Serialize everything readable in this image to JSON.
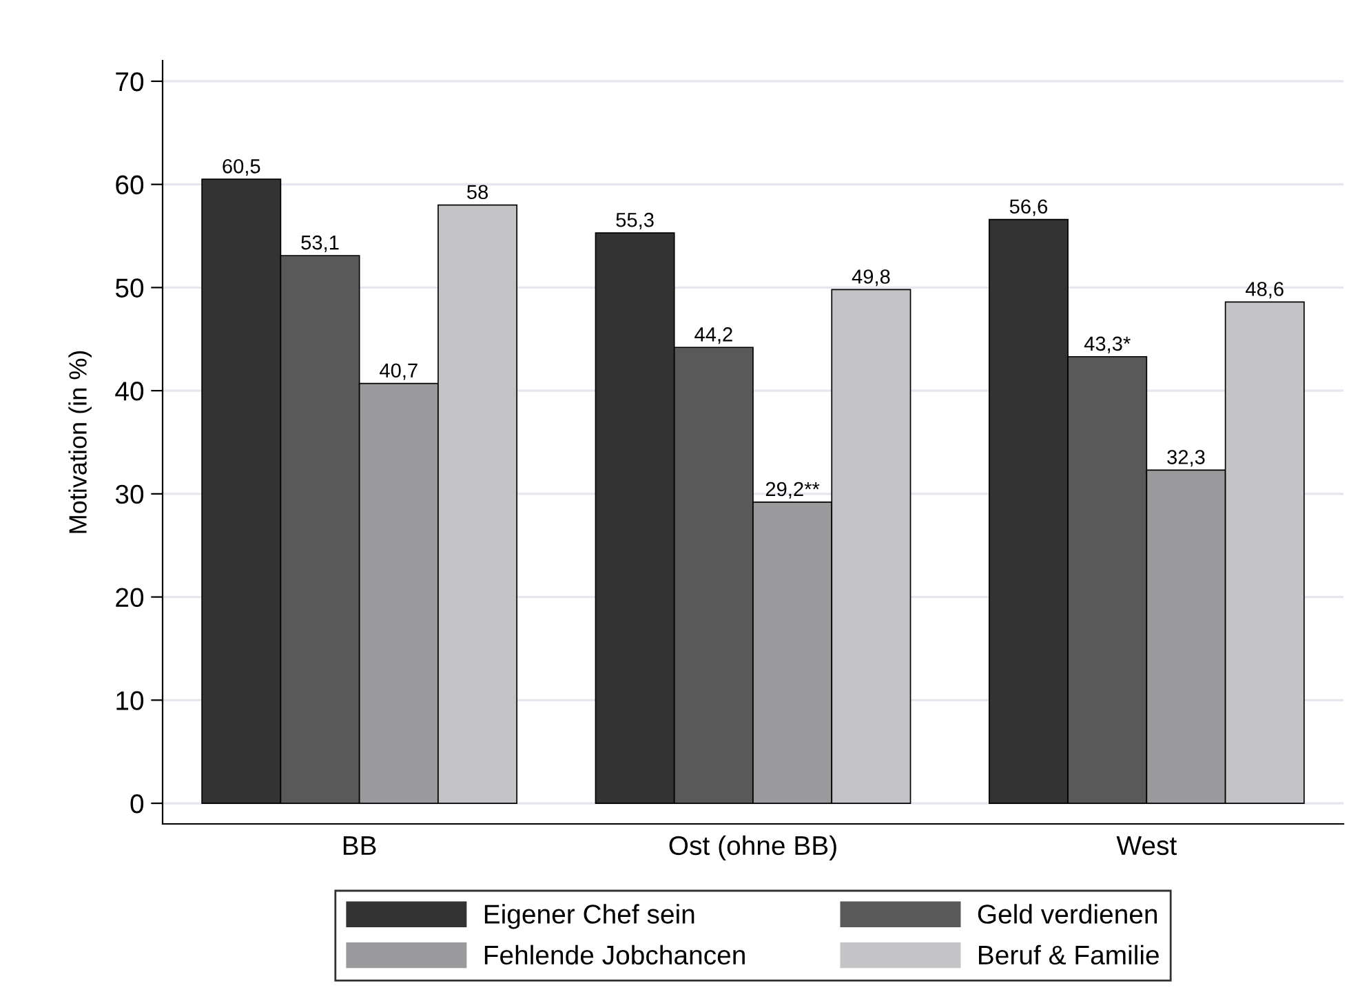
{
  "chart_data": {
    "type": "bar",
    "ylabel": "Motivation (in %)",
    "categories": [
      "BB",
      "Ost (ohne BB)",
      "West"
    ],
    "series": [
      {
        "name": "Eigener Chef sein",
        "color": "#333333",
        "values": [
          60.5,
          55.3,
          56.6
        ],
        "value_labels": [
          "60,5",
          "55,3",
          "56,6"
        ]
      },
      {
        "name": "Geld verdienen",
        "color": "#595959",
        "values": [
          53.1,
          44.2,
          43.3
        ],
        "value_labels": [
          "53,1",
          "44,2",
          "43,3*"
        ]
      },
      {
        "name": "Fehlende Jobchancen",
        "color": "#9a999b",
        "values": [
          40.7,
          29.2,
          32.3
        ],
        "value_labels": [
          "40,7",
          "29,2**",
          "32,3"
        ]
      },
      {
        "name": "Beruf & Familie",
        "color": "#c4c3c6",
        "values": [
          58,
          49.8,
          48.6
        ],
        "value_labels": [
          "58",
          "49,8",
          "48,6"
        ]
      }
    ],
    "ylim": [
      -2,
      72
    ],
    "yticks": [
      0,
      10,
      20,
      30,
      40,
      50,
      60,
      70
    ],
    "grid": "y",
    "legend": "bottom"
  }
}
